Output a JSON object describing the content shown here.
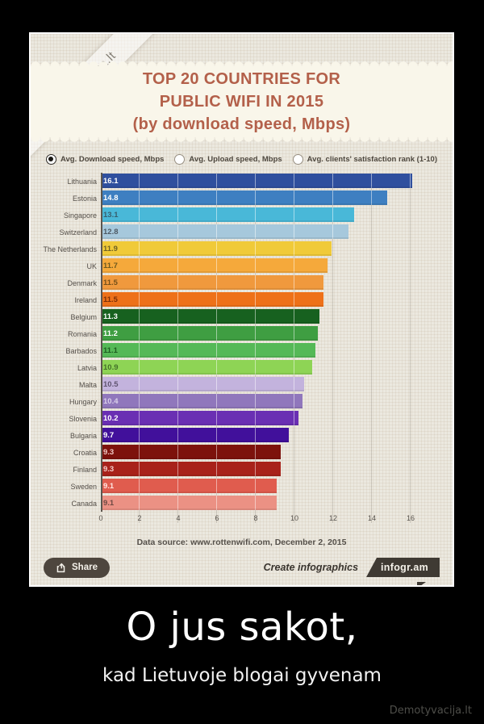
{
  "watermark_top": "Demotyvacija.lt",
  "watermark_bottom": "Demotyvacija.lt",
  "caption": {
    "title": "O jus sakot,",
    "subtitle": "kad Lietuvoje blogai gyvenam"
  },
  "poster": {
    "banner_title_lines": [
      "TOP 20 COUNTRIES FOR",
      "PUBLIC WIFI IN 2015",
      "(by download speed, Mbps)"
    ],
    "share_label": "Share",
    "create_infographics_label": "Create infographics",
    "infogram_label": "infogr.am",
    "colors": {
      "title_text": "#b3604a",
      "banner_bg": "#f9f6ea",
      "poster_bg": "#ebe8df",
      "share_button_bg": "#4e463e",
      "infogram_tag_bg": "#3f3a33"
    }
  },
  "chart_data": {
    "type": "bar",
    "orientation": "horizontal",
    "title": "TOP 20 COUNTRIES FOR PUBLIC WIFI IN 2015 (by download speed, Mbps)",
    "legend_position": "top",
    "legend": [
      {
        "label": "Avg. Download speed, Mbps",
        "selected": true
      },
      {
        "label": "Avg. Upload speed, Mbps",
        "selected": false
      },
      {
        "label": "Avg. clients' satisfaction rank (1-10)",
        "selected": false
      }
    ],
    "categories": [
      "Lithuania",
      "Estonia",
      "Singapore",
      "Switzerland",
      "The Netherlands",
      "UK",
      "Denmark",
      "Ireland",
      "Belgium",
      "Romania",
      "Barbados",
      "Latvia",
      "Malta",
      "Hungary",
      "Slovenia",
      "Bulgaria",
      "Croatia",
      "Finland",
      "Sweden",
      "Canada"
    ],
    "values": [
      16.1,
      14.8,
      13.1,
      12.8,
      11.9,
      11.7,
      11.5,
      11.5,
      11.3,
      11.2,
      11.1,
      10.9,
      10.5,
      10.4,
      10.2,
      9.7,
      9.3,
      9.3,
      9.1,
      9.1
    ],
    "bar_colors": [
      "#2f4f9e",
      "#3e7fc1",
      "#49b8d8",
      "#a6c8dc",
      "#f0ca39",
      "#f5a93b",
      "#f0993d",
      "#ee7119",
      "#17611f",
      "#3f9e42",
      "#55b957",
      "#8ed455",
      "#c3b3dd",
      "#9077bc",
      "#6a2fb3",
      "#41109b",
      "#7d120c",
      "#a8221a",
      "#e05c4e",
      "#eb9184"
    ],
    "value_label_colors": [
      "#ffffff",
      "#ffffff",
      "#375f6e",
      "#4e5a64",
      "#6e6124",
      "#6e5a1f",
      "#74501a",
      "#7a2f08",
      "#ffffff",
      "#ffffff",
      "#1e5c20",
      "#44702a",
      "#5f5470",
      "#d9d0ea",
      "#ffffff",
      "#ffffff",
      "#f1c9c5",
      "#f3cdc9",
      "#ffe6e2",
      "#6e4a44"
    ],
    "x_ticks": [
      0,
      2,
      4,
      6,
      8,
      10,
      12,
      14,
      16
    ],
    "xlim": [
      0,
      17.5
    ],
    "grid": true,
    "source_note": "Data source: www.rottenwifi.com, December 2, 2015"
  }
}
